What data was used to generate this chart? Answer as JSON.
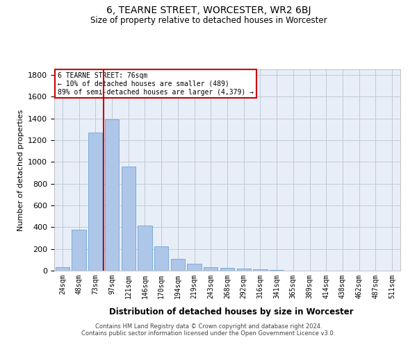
{
  "title": "6, TEARNE STREET, WORCESTER, WR2 6BJ",
  "subtitle": "Size of property relative to detached houses in Worcester",
  "xlabel": "Distribution of detached houses by size in Worcester",
  "ylabel": "Number of detached properties",
  "footer_line1": "Contains HM Land Registry data © Crown copyright and database right 2024.",
  "footer_line2": "Contains public sector information licensed under the Open Government Licence v3.0.",
  "annotation_title": "6 TEARNE STREET: 76sqm",
  "annotation_line1": "← 10% of detached houses are smaller (489)",
  "annotation_line2": "89% of semi-detached houses are larger (4,379) →",
  "bar_color": "#aec6e8",
  "bar_edge_color": "#5b9bd5",
  "highlight_color": "#cc0000",
  "grid_color": "#c0c8d8",
  "bg_color": "#e8eef8",
  "categories": [
    "24sqm",
    "48sqm",
    "73sqm",
    "97sqm",
    "121sqm",
    "146sqm",
    "170sqm",
    "194sqm",
    "219sqm",
    "243sqm",
    "268sqm",
    "292sqm",
    "316sqm",
    "341sqm",
    "365sqm",
    "389sqm",
    "414sqm",
    "438sqm",
    "462sqm",
    "487sqm",
    "511sqm"
  ],
  "values": [
    30,
    375,
    1270,
    1390,
    960,
    415,
    225,
    110,
    65,
    35,
    25,
    20,
    10,
    5,
    2,
    1,
    0,
    0,
    0,
    0,
    0
  ],
  "red_line_x": 2.5,
  "ylim_max": 1850,
  "yticks": [
    0,
    200,
    400,
    600,
    800,
    1000,
    1200,
    1400,
    1600,
    1800
  ]
}
